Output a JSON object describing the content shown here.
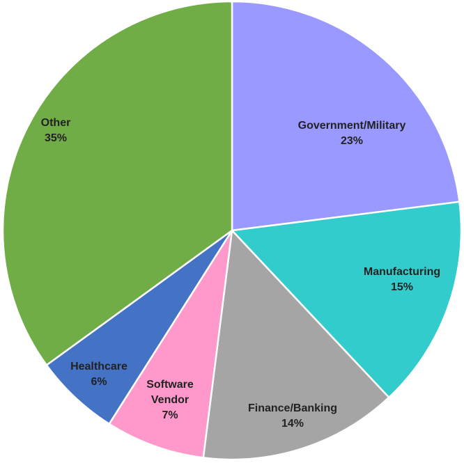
{
  "chart_data": {
    "type": "pie",
    "title": "",
    "slices": [
      {
        "label": [
          "Government/Military"
        ],
        "pct": "23%",
        "value": 23,
        "color": "#9999FF"
      },
      {
        "label": [
          "Manufacturing"
        ],
        "pct": "15%",
        "value": 15,
        "color": "#33CCCC"
      },
      {
        "label": [
          "Finance/Banking"
        ],
        "pct": "14%",
        "value": 14,
        "color": "#A5A5A5"
      },
      {
        "label": [
          "Software",
          "Vendor"
        ],
        "pct": "7%",
        "value": 7,
        "color": "#FF99CC"
      },
      {
        "label": [
          "Healthcare"
        ],
        "pct": "6%",
        "value": 6,
        "color": "#4472C4"
      },
      {
        "label": [
          "Other"
        ],
        "pct": "35%",
        "value": 35,
        "color": "#70AD47"
      }
    ],
    "start_angle_deg": 0,
    "direction": "clockwise",
    "legend": "none"
  }
}
